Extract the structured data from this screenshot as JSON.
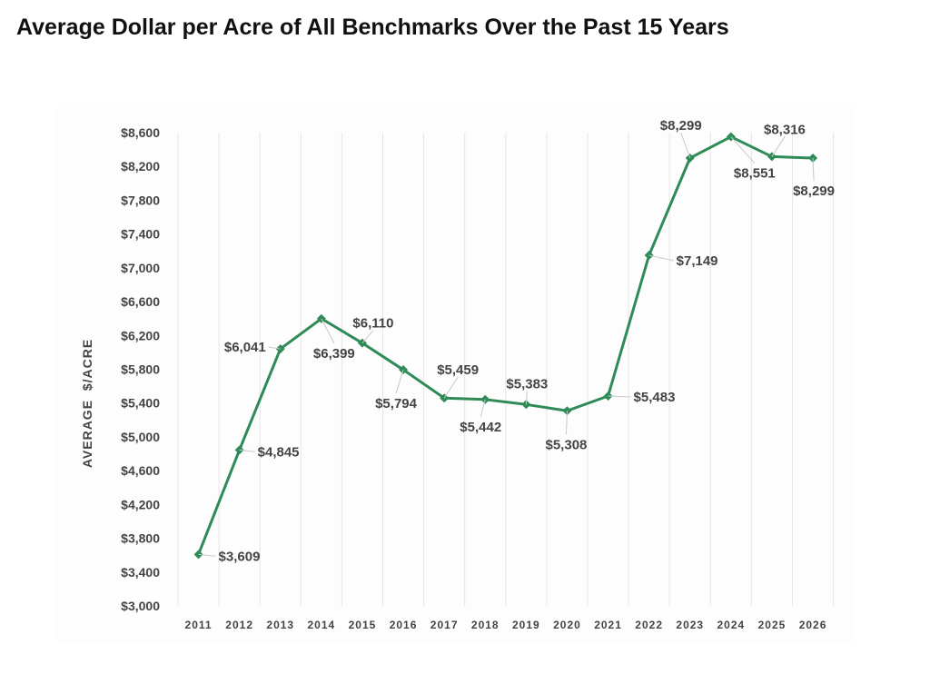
{
  "title": "Average Dollar per Acre of All Benchmarks Over the Past 15 Years",
  "chart_data": {
    "type": "line",
    "title": "Average Dollar per Acre of All Benchmarks Over the Past 15 Years",
    "xlabel": "",
    "ylabel": "AVERAGE  $/ACRE",
    "ylim": [
      3000,
      8600
    ],
    "ytick_step": 400,
    "ytick_labels": [
      "$3,000",
      "$3,400",
      "$3,800",
      "$4,200",
      "$4,600",
      "$5,000",
      "$5,400",
      "$5,800",
      "$6,200",
      "$6,600",
      "$7,000",
      "$7,400",
      "$7,800",
      "$8,200",
      "$8,600"
    ],
    "categories": [
      "2011",
      "2012",
      "2013",
      "2014",
      "2015",
      "2016",
      "2017",
      "2018",
      "2019",
      "2020",
      "2021",
      "2022",
      "2023",
      "2024",
      "2025",
      "2026"
    ],
    "values": [
      3609,
      4845,
      6041,
      6399,
      6110,
      5794,
      5459,
      5442,
      5383,
      5308,
      5483,
      7149,
      8299,
      8551,
      8316,
      8299
    ],
    "data_labels": [
      "$3,609",
      "$4,845",
      "$6,041",
      "$6,399",
      "$6,110",
      "$5,794",
      "$5,459",
      "$5,442",
      "$5,383",
      "$5,308",
      "$5,483",
      "$7,149",
      "$8,299",
      "$8,551",
      "$8,316",
      "$8,299"
    ],
    "grid": "vertical",
    "marker": "diamond",
    "line_color": "#2e8b57"
  }
}
